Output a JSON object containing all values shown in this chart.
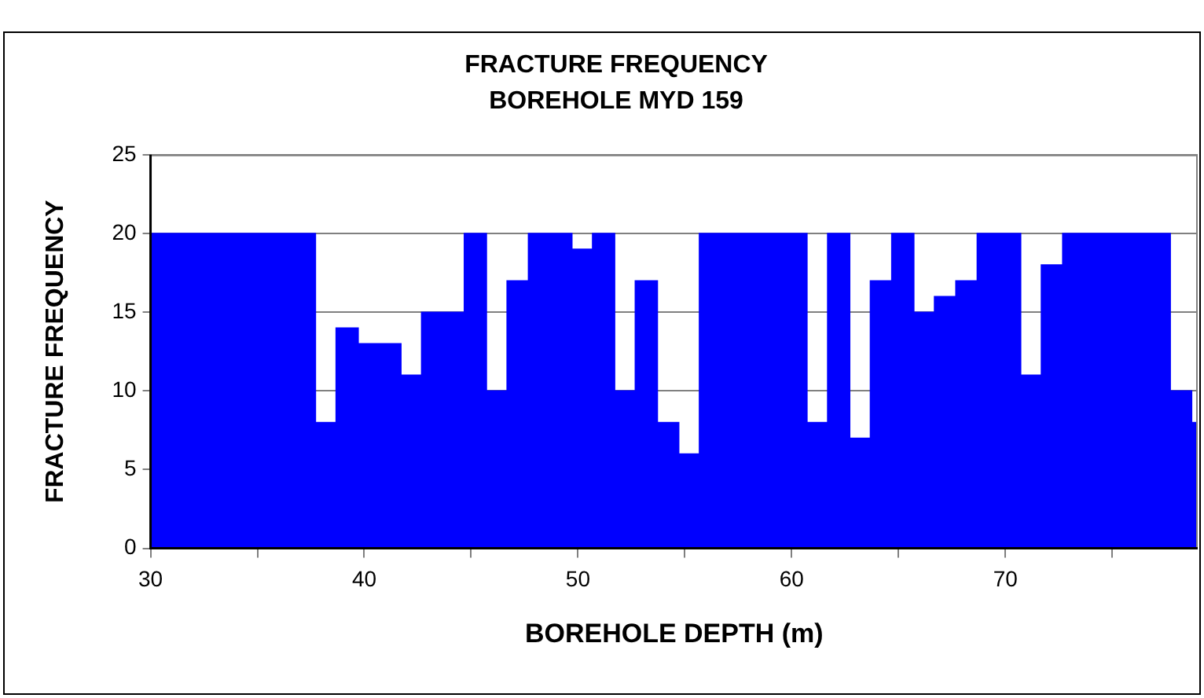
{
  "chart_data": {
    "type": "histogram",
    "title": "FRACTURE FREQUENCY",
    "subtitle": "BOREHOLE MYD 159",
    "xlabel": "BOREHOLE DEPTH (m)",
    "ylabel": "FRACTURE FREQUENCY",
    "bins": [
      30,
      37.7,
      38.7,
      39.7,
      41.7,
      42.7,
      44.7,
      45.7,
      46.7,
      47.7,
      49.7,
      50.7,
      51.7,
      52.7,
      53.7,
      54.7,
      55.7,
      60.7,
      61.7,
      62.7,
      63.7,
      64.7,
      65.7,
      66.7,
      67.7,
      68.7,
      70.7,
      71.7,
      72.7,
      77.7,
      78.7,
      79
    ],
    "values": [
      20,
      8,
      14,
      13,
      11,
      15,
      20,
      10,
      17,
      20,
      19,
      20,
      10,
      17,
      8,
      6,
      20,
      8,
      20,
      7,
      17,
      20,
      15,
      16,
      17,
      20,
      11,
      18,
      20,
      10,
      8
    ],
    "color": "#0000ff",
    "xlim": [
      30,
      79
    ],
    "xticks": [
      30,
      {
        "value": 35,
        "label": null
      },
      40,
      {
        "value": 45,
        "label": null
      },
      50,
      {
        "value": 55,
        "label": null
      },
      60,
      {
        "value": 65,
        "label": null
      },
      70,
      {
        "value": 75,
        "label": null
      }
    ],
    "ylim": [
      0,
      25
    ],
    "yticks": [
      0,
      5,
      10,
      15,
      20,
      25
    ],
    "grid": "y",
    "legend": false
  }
}
